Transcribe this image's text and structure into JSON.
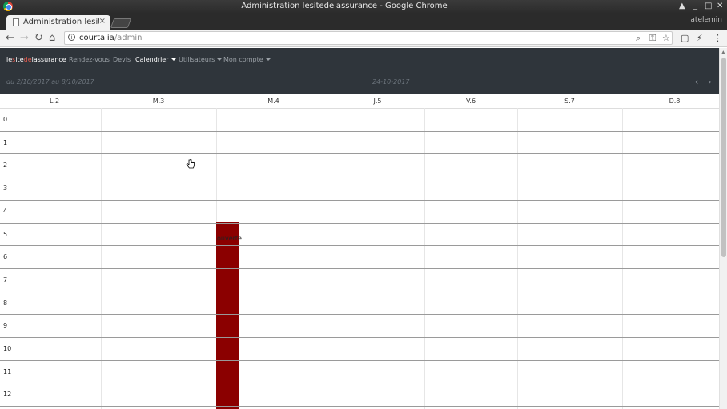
{
  "window": {
    "title": "Administration lesitedelassurance - Google Chrome",
    "profile": "atelemin"
  },
  "tab": {
    "title": "Administration lesite",
    "close": "×"
  },
  "omnibox": {
    "host": "courtalia",
    "path": "/admin"
  },
  "nav": {
    "brand_parts": [
      "le",
      "s",
      "ite",
      "de",
      "la",
      "ssurance"
    ],
    "items": [
      "Rendez-vous",
      "Devis",
      "Calendrier",
      "Utilisateurs",
      "Mon compte"
    ]
  },
  "calendar": {
    "range": "du 2/10/2017 au 8/10/2017",
    "current_date": "24-10-2017",
    "prev": "‹",
    "next": "›",
    "days": [
      "L.2",
      "M.3",
      "M.4",
      "J.5",
      "V.6",
      "S.7",
      "D.8"
    ],
    "hours": [
      "0",
      "1",
      "2",
      "3",
      "4",
      "5",
      "6",
      "7",
      "8",
      "9",
      "10",
      "11",
      "12"
    ],
    "event": {
      "label": "ouverte",
      "day": "M.4",
      "start_hour": 5,
      "color": "#8b0000"
    }
  },
  "colors": {
    "nav_bg": "#2f353b",
    "brand_accent": "#e05a4e",
    "event": "#8b0000"
  }
}
